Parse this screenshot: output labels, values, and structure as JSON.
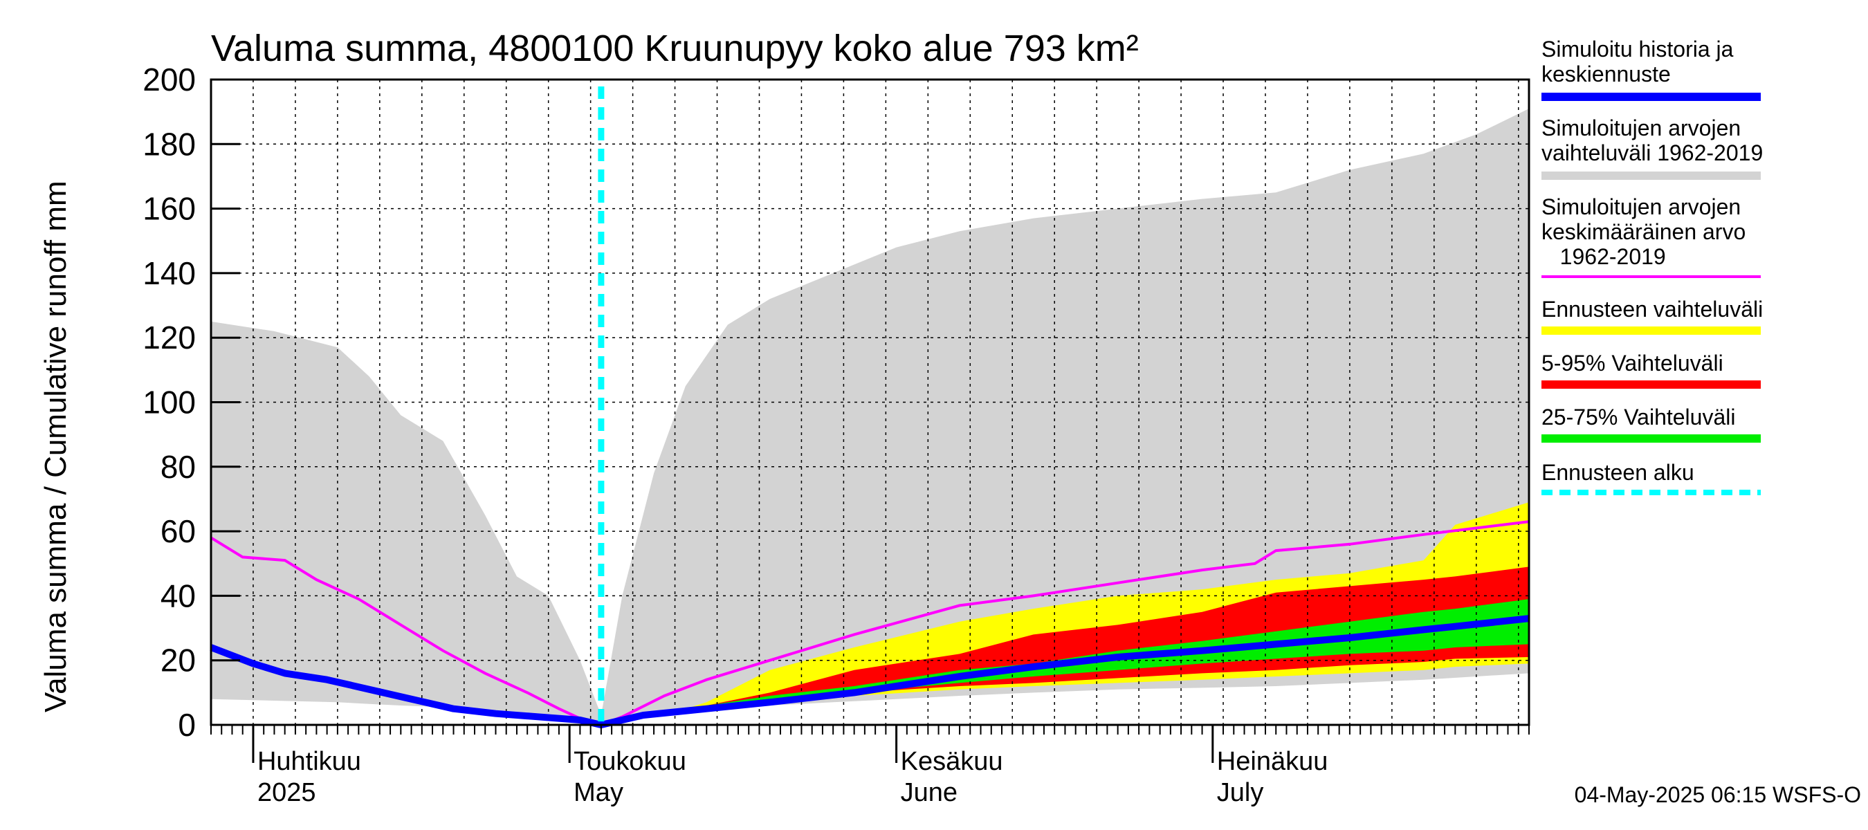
{
  "chart_data": {
    "type": "area",
    "title": "Valuma summa, 4800100 Kruunupyy koko alue 793 km²",
    "ylabel": "Valuma summa / Cumulative runoff    mm",
    "ylim": [
      0,
      200
    ],
    "yticks": [
      0,
      20,
      40,
      60,
      80,
      100,
      120,
      140,
      160,
      180,
      200
    ],
    "xlim": [
      "2025-03-28",
      "2025-07-31"
    ],
    "month_labels": [
      {
        "date": "2025-04-01",
        "fi": "Huhtikuu",
        "en": "2025"
      },
      {
        "date": "2025-05-01",
        "fi": "Toukokuu",
        "en": "May"
      },
      {
        "date": "2025-06-01",
        "fi": "Kesäkuu",
        "en": "June"
      },
      {
        "date": "2025-07-01",
        "fi": "Heinäkuu",
        "en": "July"
      }
    ],
    "forecast_start": "2025-05-04",
    "hist_range": {
      "name": "Simuloitujen arvojen vaihteluväli 1962-2019",
      "color": "#d3d3d3",
      "x": [
        "2025-03-28",
        "2025-04-03",
        "2025-04-09",
        "2025-04-12",
        "2025-04-15",
        "2025-04-19",
        "2025-04-23",
        "2025-04-26",
        "2025-04-29",
        "2025-05-02",
        "2025-05-04",
        "2025-05-06",
        "2025-05-09",
        "2025-05-12",
        "2025-05-16",
        "2025-05-20",
        "2025-05-26",
        "2025-06-01",
        "2025-06-07",
        "2025-06-14",
        "2025-06-22",
        "2025-06-30",
        "2025-07-07",
        "2025-07-14",
        "2025-07-21",
        "2025-07-26",
        "2025-07-31"
      ],
      "upper": [
        125,
        122,
        117,
        108,
        96,
        88,
        65,
        46,
        40,
        20,
        3,
        40,
        78,
        105,
        124,
        132,
        140,
        148,
        153,
        157,
        160,
        163,
        165,
        172,
        177,
        183,
        191
      ],
      "lower": [
        8,
        7.5,
        7,
        6.5,
        6,
        5.5,
        4.5,
        4,
        3,
        1.5,
        0,
        1.5,
        3,
        4,
        5,
        6,
        7,
        8,
        9,
        10,
        11,
        11.5,
        12,
        13,
        14,
        15,
        16
      ]
    },
    "forecast_range": {
      "name": "Ennusteen vaihteluväli",
      "color": "#ffff00",
      "x": [
        "2025-05-04",
        "2025-05-10",
        "2025-05-14",
        "2025-05-20",
        "2025-05-28",
        "2025-06-07",
        "2025-06-14",
        "2025-06-22",
        "2025-06-30",
        "2025-07-07",
        "2025-07-14",
        "2025-07-21",
        "2025-07-24",
        "2025-07-31"
      ],
      "upper": [
        0,
        3,
        7,
        17,
        24,
        32,
        36,
        40,
        42,
        45,
        47,
        51,
        62,
        69
      ],
      "lower": [
        0,
        3,
        5,
        7,
        9,
        11,
        12,
        13,
        14,
        15,
        16,
        17,
        18,
        19
      ]
    },
    "p5_95": {
      "name": "5-95% Vaihteluväli",
      "color": "#ff0000",
      "x": [
        "2025-05-04",
        "2025-05-10",
        "2025-05-14",
        "2025-05-20",
        "2025-05-28",
        "2025-06-07",
        "2025-06-14",
        "2025-06-22",
        "2025-06-30",
        "2025-07-07",
        "2025-07-14",
        "2025-07-21",
        "2025-07-24",
        "2025-07-31"
      ],
      "upper": [
        0,
        3,
        6,
        10,
        17,
        22,
        28,
        31,
        35,
        41,
        43,
        45,
        46,
        49
      ],
      "lower": [
        0,
        3,
        5,
        8,
        10,
        12,
        13,
        14.5,
        16,
        17,
        18.5,
        19.5,
        20.5,
        21
      ]
    },
    "p25_75": {
      "name": "25-75% Vaihteluväli",
      "color": "#00ee00",
      "x": [
        "2025-05-04",
        "2025-05-10",
        "2025-05-14",
        "2025-05-20",
        "2025-05-28",
        "2025-06-07",
        "2025-06-14",
        "2025-06-22",
        "2025-06-30",
        "2025-07-07",
        "2025-07-14",
        "2025-07-21",
        "2025-07-24",
        "2025-07-31"
      ],
      "upper": [
        0,
        3,
        6,
        9,
        12,
        17,
        19,
        23,
        26,
        29,
        32,
        35,
        36,
        39
      ],
      "lower": [
        0,
        3,
        5,
        8,
        10,
        13,
        15,
        17,
        19,
        20.5,
        22,
        23,
        24,
        25
      ]
    },
    "series": [
      {
        "name": "Simuloitu historia ja keskiennuste",
        "color": "#0000ff",
        "x": [
          "2025-03-28",
          "2025-04-01",
          "2025-04-04",
          "2025-04-08",
          "2025-04-12",
          "2025-04-16",
          "2025-04-20",
          "2025-04-24",
          "2025-04-28",
          "2025-05-02",
          "2025-05-04",
          "2025-05-08",
          "2025-05-14",
          "2025-05-20",
          "2025-05-28",
          "2025-06-07",
          "2025-06-14",
          "2025-06-22",
          "2025-06-30",
          "2025-07-07",
          "2025-07-14",
          "2025-07-21",
          "2025-07-24",
          "2025-07-31"
        ],
        "values": [
          24,
          19,
          16,
          14,
          11,
          8,
          5,
          3.5,
          2.5,
          1.5,
          0,
          3,
          5,
          7,
          10,
          15,
          18,
          21,
          23,
          25,
          27,
          29.5,
          30.5,
          33
        ]
      },
      {
        "name": "Simuloitujen arvojen keskimääräinen arvo 1962-2019",
        "color": "#ff00ff",
        "x": [
          "2025-03-28",
          "2025-03-31",
          "2025-04-04",
          "2025-04-07",
          "2025-04-11",
          "2025-04-15",
          "2025-04-19",
          "2025-04-23",
          "2025-04-27",
          "2025-04-30",
          "2025-05-02",
          "2025-05-04",
          "2025-05-06",
          "2025-05-10",
          "2025-05-14",
          "2025-05-20",
          "2025-05-28",
          "2025-06-07",
          "2025-06-14",
          "2025-06-22",
          "2025-06-30",
          "2025-07-05",
          "2025-07-07",
          "2025-07-14",
          "2025-07-21",
          "2025-07-31"
        ],
        "values": [
          58,
          52,
          51,
          45,
          39,
          31,
          23,
          16,
          10,
          5,
          2,
          0,
          2.5,
          9,
          14,
          20,
          28,
          37,
          40,
          44,
          48,
          50,
          54,
          56,
          59,
          63
        ]
      }
    ],
    "legend": [
      {
        "label": "Simuloitu historia ja\nkeskiennuste",
        "color": "#0000ff",
        "style": "solid"
      },
      {
        "label": "Simuloitujen arvojen\nvaihteluväli 1962-2019",
        "color": "#d3d3d3",
        "style": "solid"
      },
      {
        "label": "Simuloitujen arvojen\nkeskimääräinen arvo\n   1962-2019",
        "color": "#ff00ff",
        "style": "thin"
      },
      {
        "label": "Ennusteen vaihteluväli",
        "color": "#ffff00",
        "style": "solid"
      },
      {
        "label": "5-95% Vaihteluväli",
        "color": "#ff0000",
        "style": "solid"
      },
      {
        "label": "25-75% Vaihteluväli",
        "color": "#00ee00",
        "style": "solid"
      },
      {
        "label": "Ennusteen alku",
        "color": "#00ffff",
        "style": "dashed"
      }
    ],
    "forecast_line_color": "#00ffff",
    "footer": "04-May-2025 06:15 WSFS-O"
  }
}
